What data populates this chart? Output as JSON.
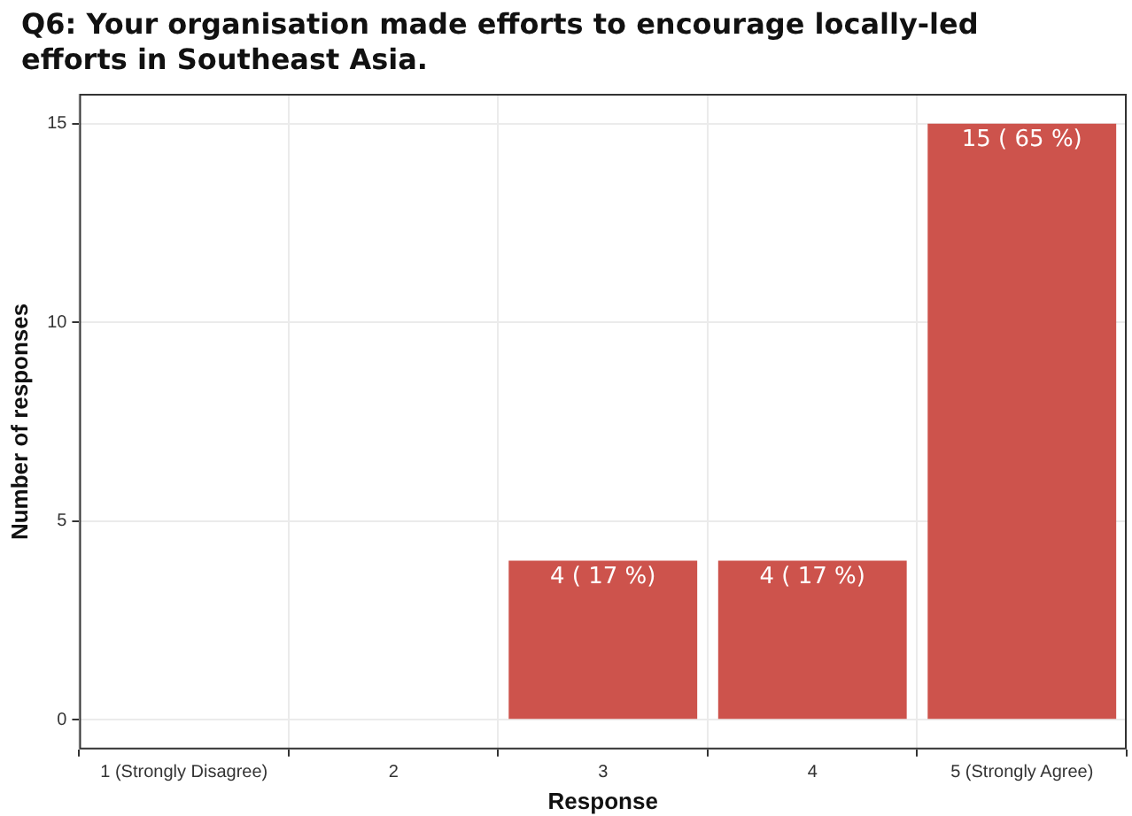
{
  "chart_data": {
    "type": "bar",
    "title": "Q6: Your organisation made efforts to encourage locally-led efforts in Southeast Asia.",
    "xlabel": "Response",
    "ylabel": "Number of responses",
    "categories": [
      "1 (Strongly Disagree)",
      "2",
      "3",
      "4",
      "5 (Strongly Agree)"
    ],
    "values": [
      0,
      0,
      4,
      4,
      15
    ],
    "color": "#cd534c",
    "value_labels": [
      null,
      null,
      "4 ( 17 %)",
      "4 ( 17 %)",
      "15 ( 65 %)"
    ],
    "ylim": [
      -0.75,
      15.75
    ],
    "yticks": [
      0,
      5,
      10,
      15
    ],
    "grid": true,
    "legend": false
  }
}
